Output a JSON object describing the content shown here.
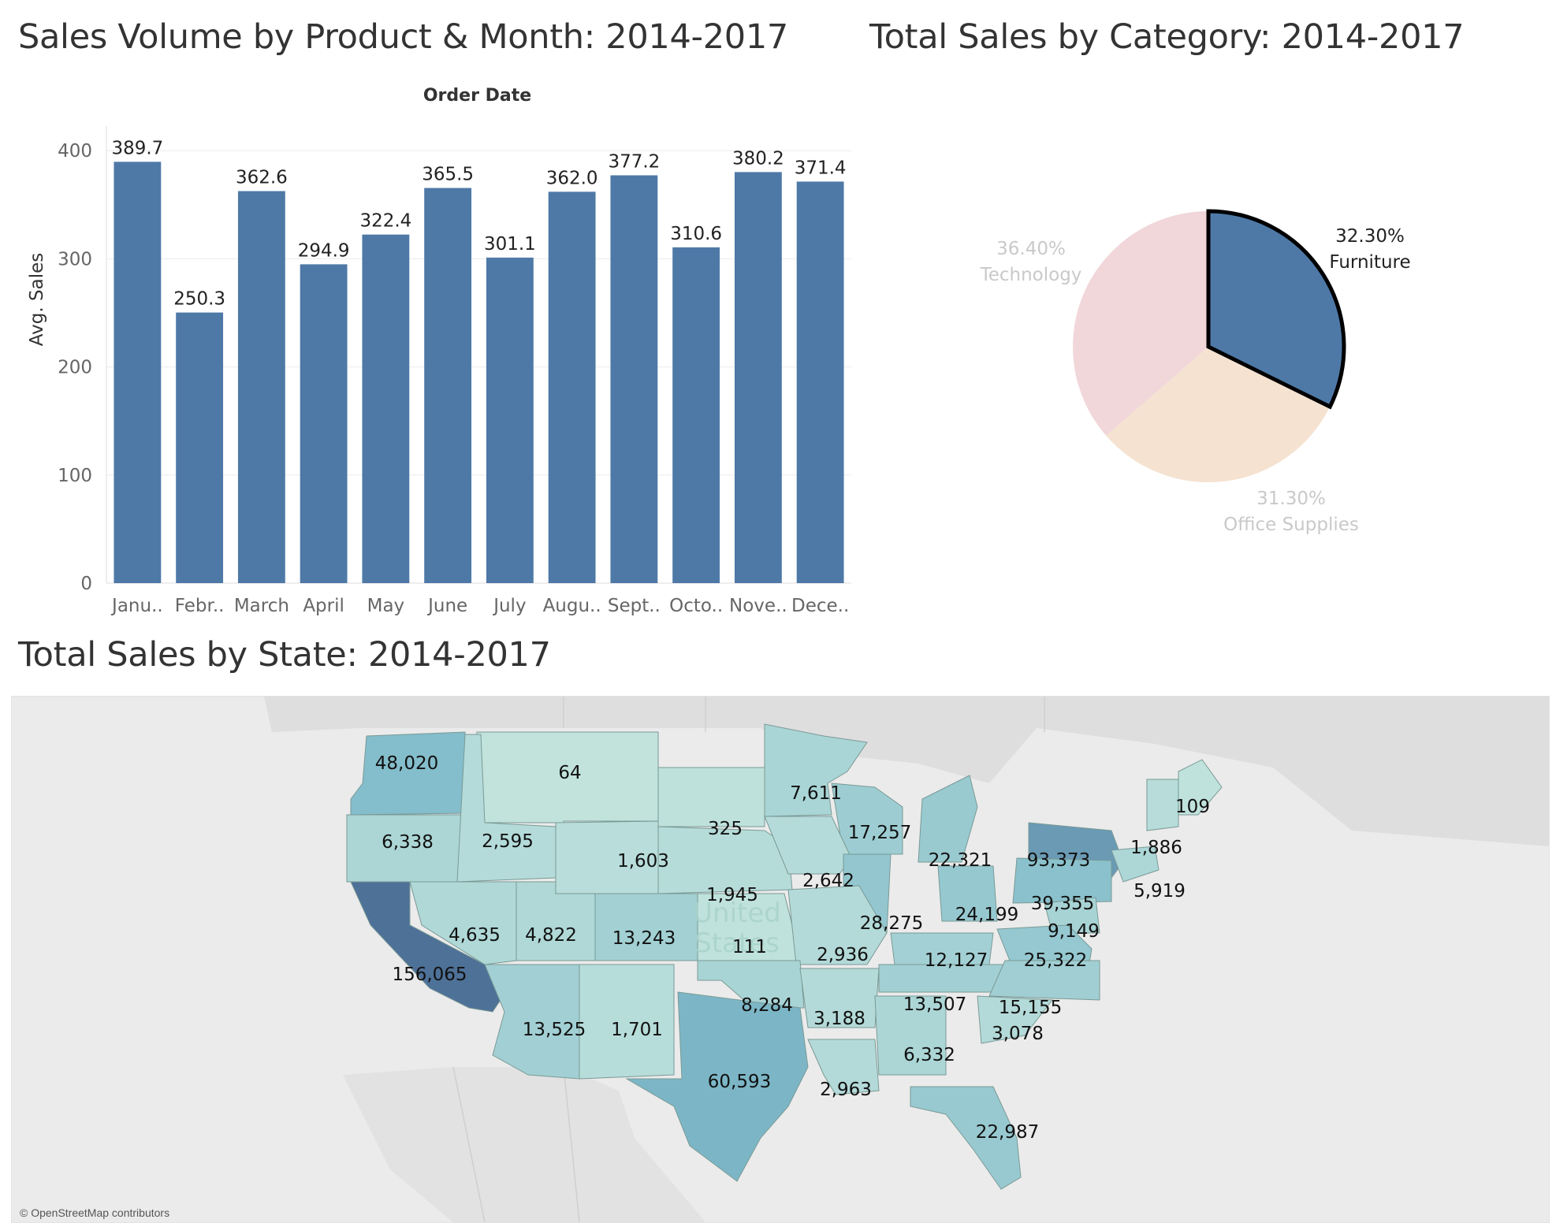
{
  "titles": {
    "bar": "Sales Volume by Product & Month: 2014-2017",
    "pie": "Total Sales by Category: 2014-2017",
    "map": "Total Sales by State: 2014-2017"
  },
  "chart_data": [
    {
      "type": "bar",
      "title": "Sales Volume by Product & Month: 2014-2017",
      "xlabel": "Order Date",
      "ylabel": "Avg. Sales",
      "ylim": [
        0,
        400
      ],
      "yticks": [
        0,
        100,
        200,
        300,
        400
      ],
      "categories": [
        "Janu..",
        "Febr..",
        "March",
        "April",
        "May",
        "June",
        "July",
        "Augu..",
        "Sept..",
        "Octo..",
        "Nove..",
        "Dece.."
      ],
      "values": [
        389.7,
        250.3,
        362.6,
        294.9,
        322.4,
        365.5,
        301.1,
        362.0,
        377.2,
        310.6,
        380.2,
        371.4
      ],
      "value_labels": [
        "389.7",
        "250.3",
        "362.6",
        "294.9",
        "322.4",
        "365.5",
        "301.1",
        "362.0",
        "377.2",
        "310.6",
        "380.2",
        "371.4"
      ],
      "color": "#4e79a7",
      "grid": true
    },
    {
      "type": "pie",
      "title": "Total Sales by Category: 2014-2017",
      "slices": [
        {
          "label": "Furniture",
          "pct_label": "32.30%",
          "value": 32.3,
          "color": "#4e79a7",
          "highlighted": true
        },
        {
          "label": "Office Supplies",
          "pct_label": "31.30%",
          "value": 31.3,
          "color": "#f5e2d0",
          "highlighted": false
        },
        {
          "label": "Technology",
          "pct_label": "36.40%",
          "value": 36.4,
          "color": "#f1d7da",
          "highlighted": false
        }
      ]
    },
    {
      "type": "map",
      "title": "Total Sales by State: 2014-2017",
      "colors": {
        "low": "#c3e4dd",
        "mid": "#7fbac9",
        "high": "#4e7198",
        "background": "#ebebeb",
        "border": "#7a9a96"
      },
      "basemap_label": "United States",
      "credit": "© OpenStreetMap contributors",
      "states": [
        {
          "label": "48,020",
          "value": 48020
        },
        {
          "label": "64",
          "value": 64
        },
        {
          "label": "7,611",
          "value": 7611
        },
        {
          "label": "109",
          "value": 109
        },
        {
          "label": "17,257",
          "value": 17257
        },
        {
          "label": "6,338",
          "value": 6338
        },
        {
          "label": "2,595",
          "value": 2595
        },
        {
          "label": "325",
          "value": 325
        },
        {
          "label": "1,886",
          "value": 1886
        },
        {
          "label": "22,321",
          "value": 22321
        },
        {
          "label": "1,603",
          "value": 1603
        },
        {
          "label": "93,373",
          "value": 93373
        },
        {
          "label": "1,945",
          "value": 1945
        },
        {
          "label": "2,642",
          "value": 2642
        },
        {
          "label": "5,919",
          "value": 5919
        },
        {
          "label": "39,355",
          "value": 39355
        },
        {
          "label": "28,275",
          "value": 28275
        },
        {
          "label": "24,199",
          "value": 24199
        },
        {
          "label": "4,635",
          "value": 4635
        },
        {
          "label": "4,822",
          "value": 4822
        },
        {
          "label": "13,243",
          "value": 13243
        },
        {
          "label": "9,149",
          "value": 9149
        },
        {
          "label": "111",
          "value": 111
        },
        {
          "label": "2,936",
          "value": 2936
        },
        {
          "label": "12,127",
          "value": 12127
        },
        {
          "label": "25,322",
          "value": 25322
        },
        {
          "label": "156,065",
          "value": 156065
        },
        {
          "label": "13,507",
          "value": 13507
        },
        {
          "label": "15,155",
          "value": 15155
        },
        {
          "label": "8,284",
          "value": 8284
        },
        {
          "label": "3,188",
          "value": 3188
        },
        {
          "label": "13,525",
          "value": 13525
        },
        {
          "label": "1,701",
          "value": 1701
        },
        {
          "label": "3,078",
          "value": 3078
        },
        {
          "label": "6,332",
          "value": 6332
        },
        {
          "label": "60,593",
          "value": 60593
        },
        {
          "label": "2,963",
          "value": 2963
        },
        {
          "label": "22,987",
          "value": 22987
        }
      ]
    }
  ]
}
